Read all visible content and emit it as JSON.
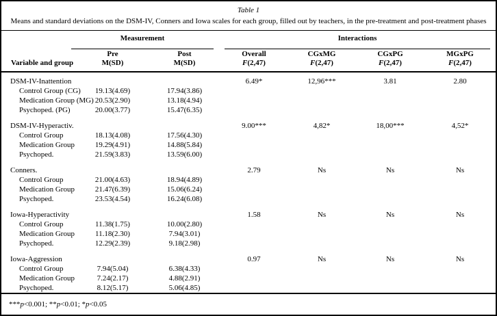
{
  "table": {
    "title": "Table 1",
    "subtitle": "Means and standard deviations on the DSM-IV, Conners and Iowa scales for each group, filled out by teachers, in the pre-treatment and post-treatment phases",
    "spanners": {
      "measurement": "Measurement",
      "interactions": "Interactions"
    },
    "columns": {
      "variable": "Variable and group",
      "pre": {
        "line1": "Pre",
        "line2": "M(SD)"
      },
      "post": {
        "line1": "Post",
        "line2": "M(SD)"
      },
      "overall": {
        "label": "Overall",
        "f": "F",
        "df": "(2,47)"
      },
      "cgxmg": {
        "label": "CGxMG",
        "f": "F",
        "df": "(2,47)"
      },
      "cgxpg": {
        "label": "CGxPG",
        "f": "F",
        "df": "(2,47)"
      },
      "mgxpg": {
        "label": "MGxPG",
        "f": "F",
        "df": "(2,47)"
      }
    },
    "sections": [
      {
        "scale": "DSM-IV-Inattention",
        "overall": "6.49*",
        "cgxmg": "12,96***",
        "cgxpg": "3.81",
        "mgxpg": "2.80",
        "rows": [
          {
            "group": "Control Group (CG)",
            "pre": "19.13(4.69)",
            "post": "17.94(3.86)"
          },
          {
            "group": "Medication Group (MG)",
            "pre": "20.53(2.90)",
            "post": "13.18(4.94)"
          },
          {
            "group": "Psychoped. (PG)",
            "pre": "20.00(3.77)",
            "post": "15.47(6.35)"
          }
        ]
      },
      {
        "scale": "DSM-IV-Hyperactiv.",
        "overall": "9.00***",
        "cgxmg": "4,82*",
        "cgxpg": "18,00***",
        "mgxpg": "4,52*",
        "rows": [
          {
            "group": "Control Group",
            "pre": "18.13(4.08)",
            "post": "17.56(4.30)"
          },
          {
            "group": "Medication Group",
            "pre": "19.29(4.91)",
            "post": "14.88(5.84)"
          },
          {
            "group": "Psychoped.",
            "pre": "21.59(3.83)",
            "post": "13.59(6.00)"
          }
        ]
      },
      {
        "scale": "Conners.",
        "overall": "2.79",
        "cgxmg": "Ns",
        "cgxpg": "Ns",
        "mgxpg": "Ns",
        "rows": [
          {
            "group": "Control Group",
            "pre": "21.00(4.63)",
            "post": "18.94(4.89)"
          },
          {
            "group": "Medication Group",
            "pre": "21.47(6.39)",
            "post": "15.06(6.24)"
          },
          {
            "group": "Psychoped.",
            "pre": "23.53(4.54)",
            "post": "16.24(6.08)"
          }
        ]
      },
      {
        "scale": "Iowa-Hyperactivity",
        "overall": "1.58",
        "cgxmg": "Ns",
        "cgxpg": "Ns",
        "mgxpg": "Ns",
        "rows": [
          {
            "group": "Control Group",
            "pre": "11.38(1.75)",
            "post": "10.00(2.80)"
          },
          {
            "group": "Medication Group",
            "pre": "11.18(2.30)",
            "post": "7.94(3.01)"
          },
          {
            "group": "Psychoped.",
            "pre": "12.29(2.39)",
            "post": "9.18(2.98)"
          }
        ]
      },
      {
        "scale": "Iowa-Aggression",
        "overall": "0.97",
        "cgxmg": "Ns",
        "cgxpg": "Ns",
        "mgxpg": "Ns",
        "rows": [
          {
            "group": "Control Group",
            "pre": "7.94(5.04)",
            "post": "6.38(4.33)"
          },
          {
            "group": "Medication Group",
            "pre": "7.24(2.17)",
            "post": "4.88(2.91)"
          },
          {
            "group": "Psychoped.",
            "pre": "8.12(5.17)",
            "post": "5.06(4.85)"
          }
        ]
      }
    ],
    "footnote_segments": [
      {
        "text": "*** "
      },
      {
        "text": "p",
        "italic": true
      },
      {
        "text": "<0.001; ** "
      },
      {
        "text": "p",
        "italic": true
      },
      {
        "text": "<0.01; * "
      },
      {
        "text": "p",
        "italic": true
      },
      {
        "text": "<0.05"
      }
    ]
  }
}
